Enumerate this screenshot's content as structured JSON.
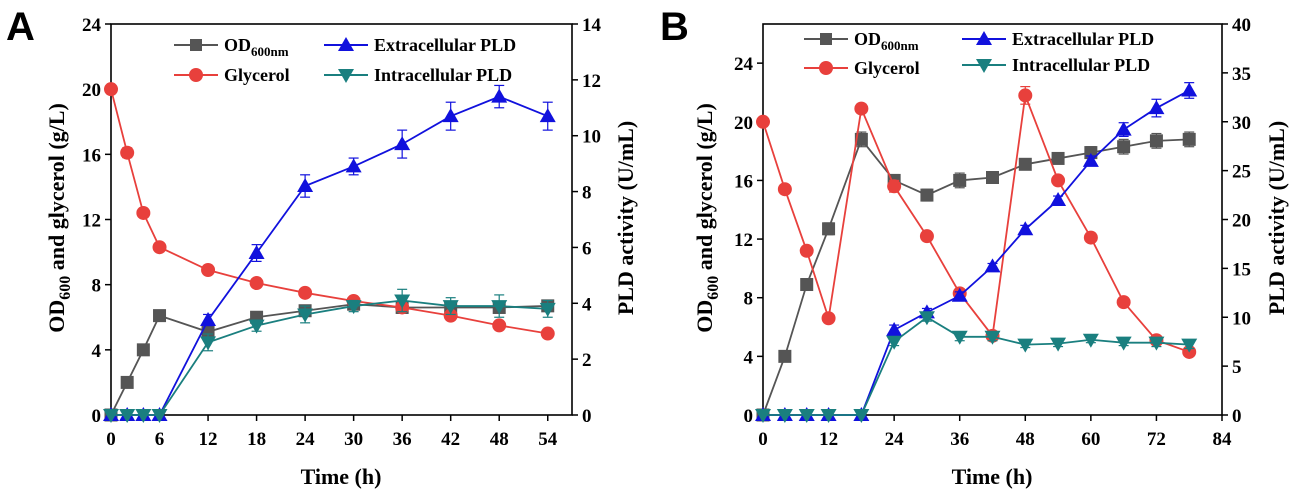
{
  "chart_data": [
    {
      "panel": "A",
      "type": "line",
      "xlabel": "Time (h)",
      "ylabel": {
        "main": "OD",
        "sub": "600",
        "rest": " and glycerol (g/L)"
      },
      "y2label": "PLD activity (U/mL)",
      "xlim": [
        0,
        57
      ],
      "xticks": [
        0,
        6,
        12,
        18,
        24,
        30,
        36,
        42,
        48,
        54
      ],
      "ylim": [
        0,
        24
      ],
      "yticks": [
        0,
        4,
        8,
        12,
        16,
        20,
        24
      ],
      "y2lim": [
        0,
        14
      ],
      "y2ticks": [
        0,
        2,
        4,
        6,
        8,
        10,
        12,
        14
      ],
      "series": [
        {
          "key": "od",
          "name": "OD",
          "name_sub": "600nm",
          "axis": "left",
          "color": "#555555",
          "marker": "square",
          "x": [
            0,
            2,
            4,
            6,
            12,
            18,
            24,
            30,
            36,
            42,
            48,
            54
          ],
          "y": [
            0,
            2.0,
            4.0,
            6.1,
            5.1,
            6.0,
            6.4,
            6.8,
            6.6,
            6.6,
            6.6,
            6.7
          ],
          "err": [
            0,
            0,
            0,
            0,
            0.2,
            0.2,
            0.2,
            0.2,
            0.2,
            0.2,
            0.2,
            0.2
          ]
        },
        {
          "key": "glycerol",
          "name": "Glycerol",
          "axis": "left",
          "color": "#e8403c",
          "marker": "circle",
          "x": [
            0,
            2,
            4,
            6,
            12,
            18,
            24,
            30,
            36,
            42,
            48,
            54
          ],
          "y": [
            20.0,
            16.1,
            12.4,
            10.3,
            8.9,
            8.1,
            7.5,
            7.0,
            6.6,
            6.1,
            5.5,
            5.0
          ],
          "err": [
            0,
            0.3,
            0.2,
            0.2,
            0.2,
            0.2,
            0.1,
            0.1,
            0.1,
            0.1,
            0.1,
            0.1
          ]
        },
        {
          "key": "extra",
          "name": "Extracellular PLD",
          "axis": "right",
          "color": "#1111dd",
          "marker": "triangle-up",
          "x": [
            0,
            2,
            4,
            6,
            12,
            18,
            24,
            30,
            36,
            42,
            48,
            54
          ],
          "y": [
            0,
            0,
            0,
            0,
            3.4,
            5.8,
            8.2,
            8.9,
            9.7,
            10.7,
            11.4,
            10.7
          ],
          "err": [
            0,
            0,
            0,
            0,
            0.2,
            0.3,
            0.4,
            0.3,
            0.5,
            0.5,
            0.4,
            0.5
          ]
        },
        {
          "key": "intra",
          "name": "Intracellular PLD",
          "axis": "right",
          "color": "#1a7f7f",
          "marker": "triangle-down",
          "x": [
            0,
            2,
            4,
            6,
            12,
            18,
            24,
            30,
            36,
            42,
            48,
            54
          ],
          "y": [
            0,
            0,
            0,
            0,
            2.6,
            3.2,
            3.6,
            3.9,
            4.1,
            3.9,
            3.9,
            3.8
          ],
          "err": [
            0,
            0,
            0,
            0,
            0.3,
            0.2,
            0.3,
            0.2,
            0.4,
            0.3,
            0.4,
            0.3
          ]
        }
      ]
    },
    {
      "panel": "B",
      "type": "line",
      "xlabel": "Time (h)",
      "ylabel": {
        "main": "OD",
        "sub": "600",
        "rest": " and glycerol (g/L)"
      },
      "y2label": "PLD activity (U/mL)",
      "xlim": [
        0,
        84
      ],
      "xticks": [
        0,
        12,
        24,
        36,
        48,
        60,
        72,
        84
      ],
      "ylim": [
        0,
        26.67
      ],
      "yticks": [
        0,
        4,
        8,
        12,
        16,
        20,
        24
      ],
      "y2lim": [
        0,
        40
      ],
      "y2ticks": [
        0,
        5,
        10,
        15,
        20,
        25,
        30,
        35,
        40
      ],
      "series": [
        {
          "key": "od",
          "name": "OD",
          "name_sub": "600nm",
          "axis": "left",
          "color": "#555555",
          "marker": "square",
          "x": [
            0,
            4,
            8,
            12,
            18,
            24,
            30,
            36,
            42,
            48,
            54,
            60,
            66,
            72,
            78
          ],
          "y": [
            0,
            4.0,
            8.9,
            12.7,
            18.8,
            16.0,
            15.0,
            16.0,
            16.2,
            17.1,
            17.5,
            17.9,
            18.3,
            18.7,
            18.8
          ],
          "err": [
            0,
            0.2,
            0.4,
            0.4,
            0.5,
            0.4,
            0.4,
            0.5,
            0.4,
            0.3,
            0.3,
            0.4,
            0.5,
            0.5,
            0.5
          ]
        },
        {
          "key": "glycerol",
          "name": "Glycerol",
          "axis": "left",
          "color": "#e8403c",
          "marker": "circle",
          "x": [
            0,
            4,
            8,
            12,
            18,
            24,
            30,
            36,
            42,
            48,
            54,
            60,
            66,
            72,
            78
          ],
          "y": [
            20.0,
            15.4,
            11.2,
            6.6,
            20.9,
            15.6,
            12.2,
            8.3,
            5.4,
            21.8,
            16.0,
            12.1,
            7.7,
            5.1,
            4.3
          ],
          "err": [
            0,
            0.3,
            0.3,
            0.2,
            0.3,
            0.4,
            0.3,
            0.3,
            0.3,
            0.6,
            0.3,
            0.3,
            0.2,
            0.2,
            0.2
          ]
        },
        {
          "key": "extra",
          "name": "Extracellular PLD",
          "axis": "right",
          "color": "#1111dd",
          "marker": "triangle-up",
          "x": [
            0,
            4,
            8,
            12,
            18,
            24,
            30,
            36,
            42,
            48,
            54,
            60,
            66,
            72,
            78
          ],
          "y": [
            0,
            0,
            0,
            0,
            0,
            8.7,
            10.5,
            12.2,
            15.2,
            19.0,
            22.0,
            26.0,
            29.2,
            31.4,
            33.2
          ],
          "err": [
            0,
            0,
            0,
            0,
            0,
            0.5,
            0.4,
            0.4,
            0.3,
            0.4,
            0.4,
            0.5,
            0.7,
            0.9,
            0.8
          ]
        },
        {
          "key": "intra",
          "name": "Intracellular PLD",
          "axis": "right",
          "color": "#1a7f7f",
          "marker": "triangle-down",
          "x": [
            0,
            4,
            8,
            12,
            18,
            24,
            30,
            36,
            42,
            48,
            54,
            60,
            66,
            72,
            78
          ],
          "y": [
            0,
            0,
            0,
            0,
            0,
            7.5,
            10.0,
            8.0,
            8.0,
            7.2,
            7.3,
            7.7,
            7.4,
            7.4,
            7.2
          ],
          "err": [
            0,
            0,
            0,
            0,
            0,
            0.4,
            0.4,
            0.4,
            0.4,
            0.3,
            0.3,
            0.3,
            0.3,
            0.4,
            0.4
          ]
        }
      ]
    }
  ]
}
